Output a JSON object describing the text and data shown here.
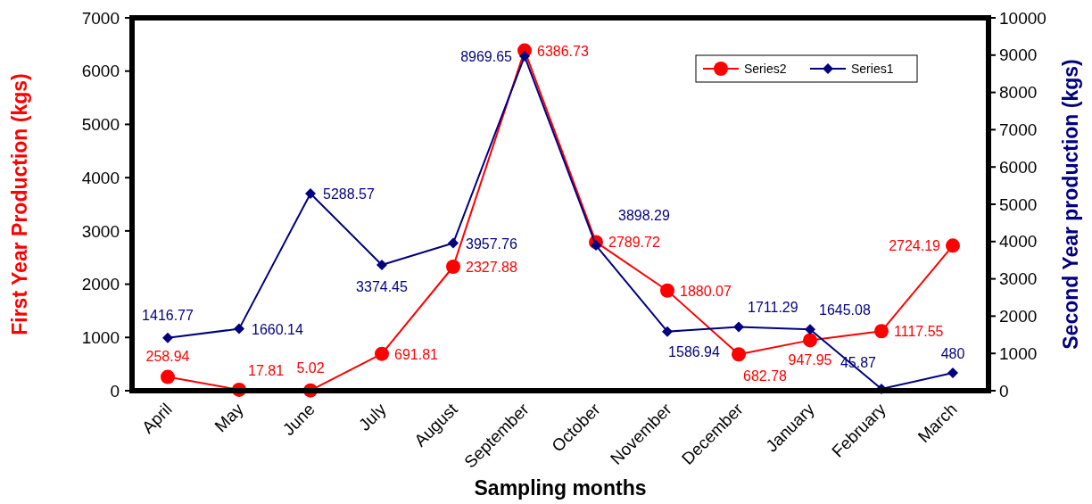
{
  "chart_data": {
    "type": "line",
    "xlabel": "Sampling months",
    "ylabel": "First Year Production (kgs)",
    "y2label": "Second Year production (kgs)",
    "categories": [
      "April",
      "May",
      "June",
      "July",
      "August",
      "September",
      "October",
      "November",
      "December",
      "January",
      "February",
      "March"
    ],
    "series": [
      {
        "name": "Series2",
        "color": "#ff0000",
        "marker": "circle",
        "values": [
          258.94,
          17.81,
          5.02,
          691.81,
          2327.88,
          6386.73,
          2789.72,
          1880.07,
          682.78,
          947.95,
          1117.55,
          2724.19
        ]
      },
      {
        "name": "Series1",
        "color": "#000080",
        "marker": "diamond",
        "axis": "y2",
        "values": [
          1416.77,
          1660.14,
          5288.57,
          3374.45,
          3957.76,
          8969.65,
          3898.29,
          1586.94,
          1711.29,
          1645.08,
          45.87,
          480
        ]
      }
    ],
    "ylim": [
      0,
      7000
    ],
    "yticks": [
      0,
      1000,
      2000,
      3000,
      4000,
      5000,
      6000,
      7000
    ],
    "y2lim": [
      0,
      10000
    ],
    "y2ticks": [
      0,
      1000,
      2000,
      3000,
      4000,
      5000,
      6000,
      7000,
      8000,
      9000,
      10000
    ],
    "grid": false,
    "legend": "top right",
    "data_labels": true,
    "line_style": "solid"
  }
}
